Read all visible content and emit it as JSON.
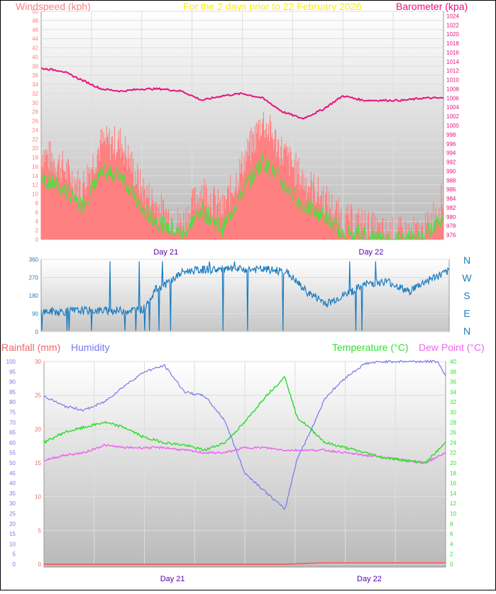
{
  "colors": {
    "wind_avg": "#33ee33",
    "wind_gust": "#ff8080",
    "barometer": "#e8127c",
    "direction": "#1a7cc0",
    "temperature": "#33dd33",
    "dew_point": "#ee66ee",
    "humidity": "#7777ee",
    "rainfall": "#ee6666",
    "day_label": "#5500aa",
    "compass_label": "#1a7cc0",
    "title_highlight": "#ffee00"
  },
  "headers": {
    "windspeed": "Windspeed (kph)",
    "subtitle": "For the 2 days prior to   22 February 2026",
    "barometer": "Barometer (kpa)",
    "rainfall": "Rainfall (mm)",
    "humidity": "Humidity",
    "temperature": "Temperature (°C)",
    "dew_point": "Dew Point (°C)"
  },
  "compass": [
    "N",
    "W",
    "S",
    "E",
    "N"
  ],
  "chart_data": [
    {
      "type": "line",
      "name_key": "wind",
      "x_labels": [
        "Day 21",
        "Day 22"
      ],
      "y_left": {
        "label": "Windspeed (kph)",
        "range": [
          0,
          50
        ],
        "ticks": [
          0,
          2,
          4,
          6,
          8,
          10,
          12,
          14,
          16,
          18,
          20,
          22,
          24,
          26,
          28,
          30,
          32,
          34,
          36,
          38,
          40,
          42,
          44,
          46,
          48,
          50
        ]
      },
      "y_right": {
        "label": "Barometer (kpa)",
        "range": [
          975,
          1025
        ],
        "ticks": [
          976,
          978,
          980,
          982,
          984,
          986,
          988,
          990,
          992,
          994,
          996,
          998,
          1000,
          1002,
          1004,
          1006,
          1008,
          1010,
          1012,
          1014,
          1016,
          1018,
          1020,
          1022,
          1024
        ]
      },
      "grid": true,
      "series": [
        {
          "key": "barometer",
          "axis": "right",
          "x": [
            0,
            0.05,
            0.1,
            0.15,
            0.2,
            0.25,
            0.3,
            0.35,
            0.4,
            0.45,
            0.5,
            0.55,
            0.6,
            0.65,
            0.7,
            0.75,
            0.8,
            0.85,
            0.9,
            0.95,
            1.0
          ],
          "y": [
            1012.5,
            1012,
            1010,
            1008,
            1007.5,
            1008,
            1008,
            1007.5,
            1005.5,
            1006.5,
            1007,
            1006,
            1003,
            1001.5,
            1003.5,
            1006.5,
            1005.5,
            1005.5,
            1005.5,
            1006,
            1006
          ]
        },
        {
          "key": "wind_gust",
          "axis": "left",
          "x": [
            0,
            0.05,
            0.1,
            0.15,
            0.2,
            0.25,
            0.3,
            0.35,
            0.4,
            0.45,
            0.5,
            0.55,
            0.6,
            0.65,
            0.7,
            0.75,
            0.8,
            0.85,
            0.9,
            0.95,
            1.0
          ],
          "y": [
            18,
            15,
            10,
            20,
            20,
            10,
            5,
            2,
            10,
            5,
            15,
            25,
            18,
            12,
            8,
            3,
            2,
            0,
            0,
            0,
            8
          ]
        },
        {
          "key": "wind_avg",
          "axis": "left",
          "x": [
            0,
            0.05,
            0.1,
            0.15,
            0.2,
            0.25,
            0.3,
            0.35,
            0.4,
            0.45,
            0.5,
            0.55,
            0.6,
            0.65,
            0.7,
            0.75,
            0.8,
            0.85,
            0.9,
            0.95,
            1.0
          ],
          "y": [
            13,
            11,
            7,
            14,
            14,
            6,
            3,
            1,
            6,
            2,
            10,
            17,
            12,
            7,
            5,
            1,
            1,
            0,
            0,
            0,
            5
          ]
        }
      ]
    },
    {
      "type": "line",
      "name_key": "direction",
      "y": {
        "range": [
          0,
          360
        ],
        "ticks": [
          0,
          90,
          180,
          270,
          360
        ]
      },
      "grid": true,
      "series": [
        {
          "key": "direction",
          "x": [
            0,
            0.05,
            0.1,
            0.15,
            0.2,
            0.25,
            0.28,
            0.3,
            0.35,
            0.4,
            0.45,
            0.5,
            0.55,
            0.6,
            0.65,
            0.7,
            0.75,
            0.8,
            0.85,
            0.9,
            0.95,
            1.0
          ],
          "y": [
            100,
            100,
            105,
            105,
            105,
            110,
            210,
            230,
            300,
            310,
            310,
            310,
            310,
            300,
            200,
            140,
            190,
            240,
            250,
            200,
            260,
            300
          ]
        }
      ]
    },
    {
      "type": "line",
      "name_key": "climate",
      "x_labels": [
        "Day 21",
        "Day 22"
      ],
      "y_left_outer": {
        "label": "Humidity",
        "range": [
          0,
          100
        ],
        "ticks": [
          0,
          5,
          10,
          15,
          20,
          25,
          30,
          35,
          40,
          45,
          50,
          55,
          60,
          65,
          70,
          75,
          80,
          85,
          90,
          95,
          100
        ]
      },
      "y_left_inner": {
        "label": "Rainfall (mm)",
        "range": [
          0,
          30
        ],
        "ticks": [
          0,
          5,
          10,
          15,
          20,
          25,
          30
        ]
      },
      "y_right": {
        "label": "Temperature (°C)",
        "range": [
          0,
          40
        ],
        "ticks": [
          0,
          2,
          4,
          6,
          8,
          10,
          12,
          14,
          16,
          18,
          20,
          22,
          24,
          26,
          28,
          30,
          32,
          34,
          36,
          38,
          40
        ]
      },
      "grid": true,
      "series": [
        {
          "key": "humidity",
          "axis": "left_outer",
          "x": [
            0,
            0.05,
            0.1,
            0.15,
            0.2,
            0.25,
            0.3,
            0.35,
            0.4,
            0.45,
            0.5,
            0.55,
            0.6,
            0.63,
            0.66,
            0.7,
            0.75,
            0.8,
            0.85,
            0.9,
            0.95,
            0.98,
            1.0
          ],
          "y": [
            83,
            78,
            76,
            80,
            88,
            95,
            98,
            85,
            83,
            71,
            45,
            36,
            27,
            52,
            64,
            82,
            92,
            99,
            100,
            100,
            100,
            100,
            93
          ]
        },
        {
          "key": "temperature",
          "axis": "right",
          "x": [
            0,
            0.05,
            0.1,
            0.15,
            0.2,
            0.25,
            0.3,
            0.35,
            0.4,
            0.45,
            0.5,
            0.55,
            0.6,
            0.63,
            0.66,
            0.7,
            0.75,
            0.8,
            0.85,
            0.9,
            0.95,
            1.0
          ],
          "y": [
            24,
            26,
            27,
            28,
            27,
            25,
            24,
            23.5,
            22.5,
            24,
            28,
            33,
            37,
            29,
            27,
            24,
            23,
            22,
            21,
            20.5,
            20,
            24
          ]
        },
        {
          "key": "dew_point",
          "axis": "right",
          "x": [
            0,
            0.05,
            0.1,
            0.15,
            0.2,
            0.25,
            0.3,
            0.35,
            0.4,
            0.45,
            0.5,
            0.55,
            0.6,
            0.65,
            0.7,
            0.75,
            0.8,
            0.85,
            0.9,
            0.95,
            1.0
          ],
          "y": [
            20.5,
            21.5,
            22,
            23.5,
            23,
            23,
            23,
            22.5,
            22,
            22,
            23,
            23,
            22.5,
            22.5,
            22.5,
            22,
            21.5,
            21,
            20.5,
            20,
            22
          ]
        },
        {
          "key": "rainfall",
          "axis": "left_inner",
          "x": [
            0,
            0.1,
            0.2,
            0.3,
            0.4,
            0.5,
            0.6,
            0.7,
            0.8,
            0.9,
            1.0
          ],
          "y": [
            0,
            0,
            0,
            0,
            0,
            0,
            0,
            0.2,
            0.2,
            0.2,
            0.2
          ]
        }
      ]
    }
  ]
}
